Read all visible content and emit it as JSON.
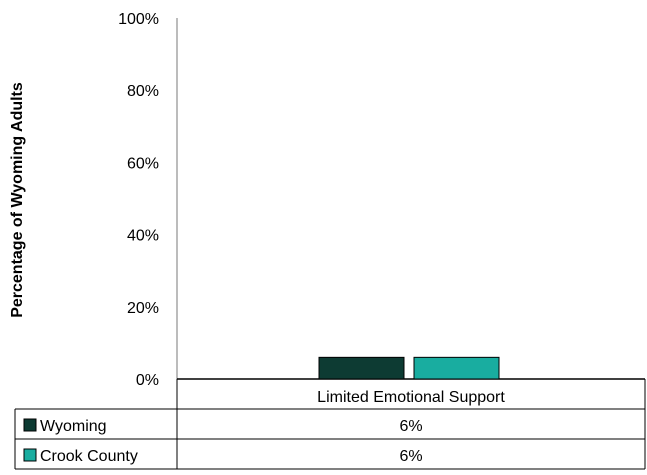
{
  "chart_data": {
    "type": "bar",
    "ylabel": "Percentage of Wyoming Adults",
    "ylim": [
      0,
      100
    ],
    "yticks": [
      0,
      20,
      40,
      60,
      80,
      100
    ],
    "ytick_labels": [
      "0%",
      "20%",
      "40%",
      "60%",
      "80%",
      "100%"
    ],
    "categories": [
      "Limited Emotional Support"
    ],
    "series": [
      {
        "name": "Wyoming",
        "values": [
          6
        ],
        "color": "#0d3b33",
        "table_values": [
          "6%"
        ]
      },
      {
        "name": "Crook County",
        "values": [
          6
        ],
        "color": "#19ada0",
        "table_values": [
          "6%"
        ]
      }
    ],
    "data_table": true,
    "grid": false
  }
}
